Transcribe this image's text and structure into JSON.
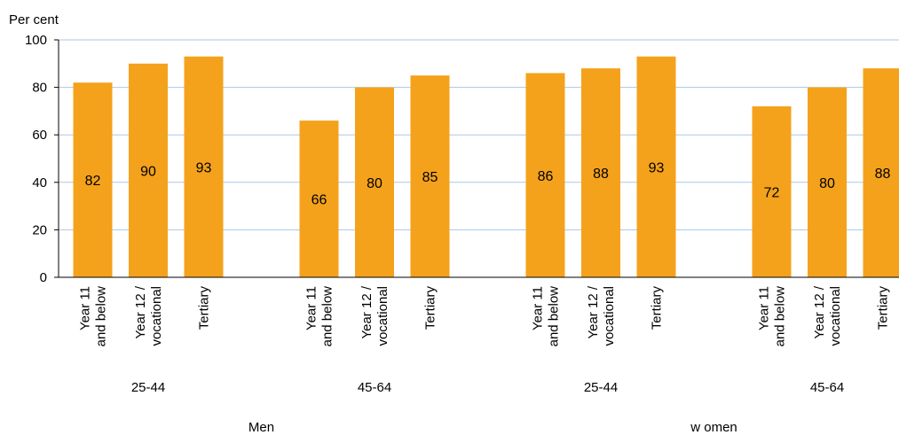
{
  "chart_data": {
    "type": "bar",
    "ylabel": "Per cent",
    "ylim": [
      0,
      100
    ],
    "yticks": [
      0,
      20,
      40,
      60,
      80,
      100
    ],
    "grid": true,
    "groups": [
      {
        "sex": "Men",
        "age_groups": [
          {
            "label": "25-44",
            "bars": [
              {
                "category": [
                  "Year 11",
                  "and below"
                ],
                "value": 82
              },
              {
                "category": [
                  "Year 12 /",
                  "vocational"
                ],
                "value": 90
              },
              {
                "category": [
                  "Tertiary"
                ],
                "value": 93
              }
            ]
          },
          {
            "label": "45-64",
            "bars": [
              {
                "category": [
                  "Year 11",
                  "and below"
                ],
                "value": 66
              },
              {
                "category": [
                  "Year 12 /",
                  "vocational"
                ],
                "value": 80
              },
              {
                "category": [
                  "Tertiary"
                ],
                "value": 85
              }
            ]
          }
        ]
      },
      {
        "sex": "w omen",
        "age_groups": [
          {
            "label": "25-44",
            "bars": [
              {
                "category": [
                  "Year 11",
                  "and below"
                ],
                "value": 86
              },
              {
                "category": [
                  "Year 12 /",
                  "vocational"
                ],
                "value": 88
              },
              {
                "category": [
                  "Tertiary"
                ],
                "value": 93
              }
            ]
          },
          {
            "label": "45-64",
            "bars": [
              {
                "category": [
                  "Year 11",
                  "and below"
                ],
                "value": 72
              },
              {
                "category": [
                  "Year 12 /",
                  "vocational"
                ],
                "value": 80
              },
              {
                "category": [
                  "Tertiary"
                ],
                "value": 88
              }
            ]
          }
        ]
      }
    ],
    "colors": {
      "bar": "#F4A21B",
      "grid": "#A9C8E8",
      "axis": "#000000"
    }
  }
}
